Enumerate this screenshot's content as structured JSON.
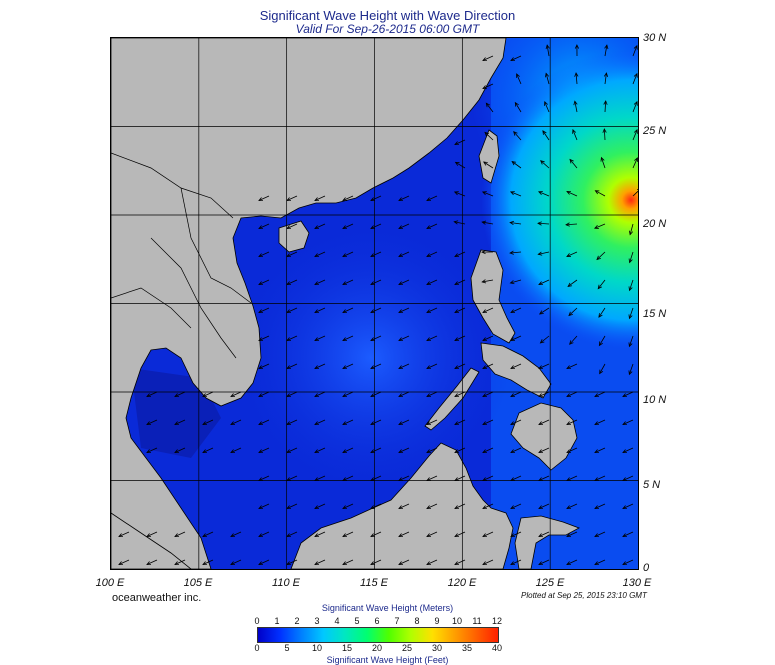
{
  "title": "Significant Wave Height with Wave Direction",
  "subtitle": "Valid For Sep-26-2015 06:00 GMT",
  "map": {
    "lon_range": [
      100,
      130
    ],
    "lat_range": [
      0,
      30
    ],
    "lon_ticks": [
      "100 E",
      "105 E",
      "110 E",
      "115 E",
      "120 E",
      "125 E",
      "130 E"
    ],
    "lat_ticks": [
      "30 N",
      "25 N",
      "20 N",
      "15 N",
      "10 N",
      "5 N",
      "0"
    ],
    "land_color": "#b8b8b8",
    "sea_low_color": "#0a2ad8",
    "peak_color": "#e02a10",
    "peak_location": "near 130 E, 21.5 N"
  },
  "credit": "oceanweather inc.",
  "plotted": "Plotted at Sep 25, 2015 23:10 GMT",
  "colorbar": {
    "title_top": "Significant Wave Height (Meters)",
    "title_bottom": "Significant Wave Height (Feet)",
    "meters": [
      "0",
      "1",
      "2",
      "3",
      "4",
      "5",
      "6",
      "7",
      "8",
      "9",
      "10",
      "11",
      "12"
    ],
    "feet": [
      "0",
      "5",
      "10",
      "15",
      "20",
      "25",
      "30",
      "35",
      "40"
    ],
    "colors": [
      "#0000c8",
      "#0030ff",
      "#0080ff",
      "#00c8ff",
      "#00e8c0",
      "#00ff70",
      "#50ff00",
      "#b0ff00",
      "#ffe000",
      "#ffa000",
      "#ff6000",
      "#ff2000"
    ]
  }
}
